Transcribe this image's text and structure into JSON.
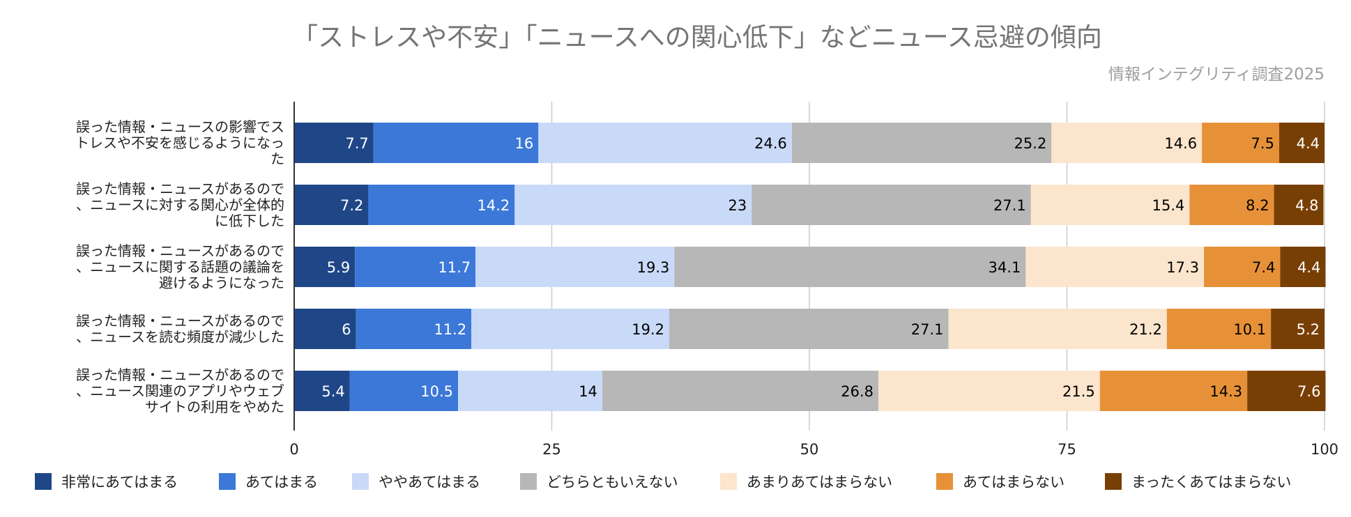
{
  "chart_data": {
    "type": "bar",
    "orientation": "horizontal",
    "stacked": true,
    "title": "「ストレスや不安」「ニュースへの関心低下」などニュース忌避の傾向",
    "subtitle": "情報インテグリティ調査2025",
    "xlabel": "",
    "ylabel": "",
    "xlim": [
      0,
      100
    ],
    "x_ticks": [
      "0",
      "25",
      "50",
      "75",
      "100"
    ],
    "grid": true,
    "legend_position": "bottom",
    "categories": [
      [
        "誤った情報・ニュースの影響でス",
        "トレスや不安を感じるようになっ",
        "た"
      ],
      [
        "誤った情報・ニュースがあるので",
        "、ニュースに対する関心が全体的",
        "に低下した"
      ],
      [
        "誤った情報・ニュースがあるので",
        "、ニュースに関する話題の議論を",
        "避けるようになった"
      ],
      [
        "誤った情報・ニュースがあるので",
        "、ニュースを読む頻度が減少した"
      ],
      [
        "誤った情報・ニュースがあるので",
        "、ニュース関連のアプリやウェブ",
        "サイトの利用をやめた"
      ]
    ],
    "series": [
      {
        "name": "非常にあてはまる",
        "color": "#1f4788",
        "label_color": "#ffffff",
        "values": [
          7.7,
          7.2,
          5.9,
          6,
          5.4
        ]
      },
      {
        "name": "あてはまる",
        "color": "#3c78d8",
        "label_color": "#ffffff",
        "values": [
          16,
          14.2,
          11.7,
          11.2,
          10.5
        ]
      },
      {
        "name": "ややあてはまる",
        "color": "#c9daf8",
        "label_color": "#000000",
        "values": [
          24.6,
          23,
          19.3,
          19.2,
          14
        ]
      },
      {
        "name": "どちらともいえない",
        "color": "#b7b7b7",
        "label_color": "#000000",
        "values": [
          25.2,
          27.1,
          34.1,
          27.1,
          26.8
        ]
      },
      {
        "name": "あまりあてはまらない",
        "color": "#fce5cd",
        "label_color": "#000000",
        "values": [
          14.6,
          15.4,
          17.3,
          21.2,
          21.5
        ]
      },
      {
        "name": "あてはまらない",
        "color": "#e69138",
        "label_color": "#000000",
        "values": [
          7.5,
          8.2,
          7.4,
          10.1,
          14.3
        ]
      },
      {
        "name": "まったくあてはまらない",
        "color": "#783f04",
        "label_color": "#ffffff",
        "values": [
          4.4,
          4.8,
          4.4,
          5.2,
          7.6
        ]
      }
    ]
  }
}
